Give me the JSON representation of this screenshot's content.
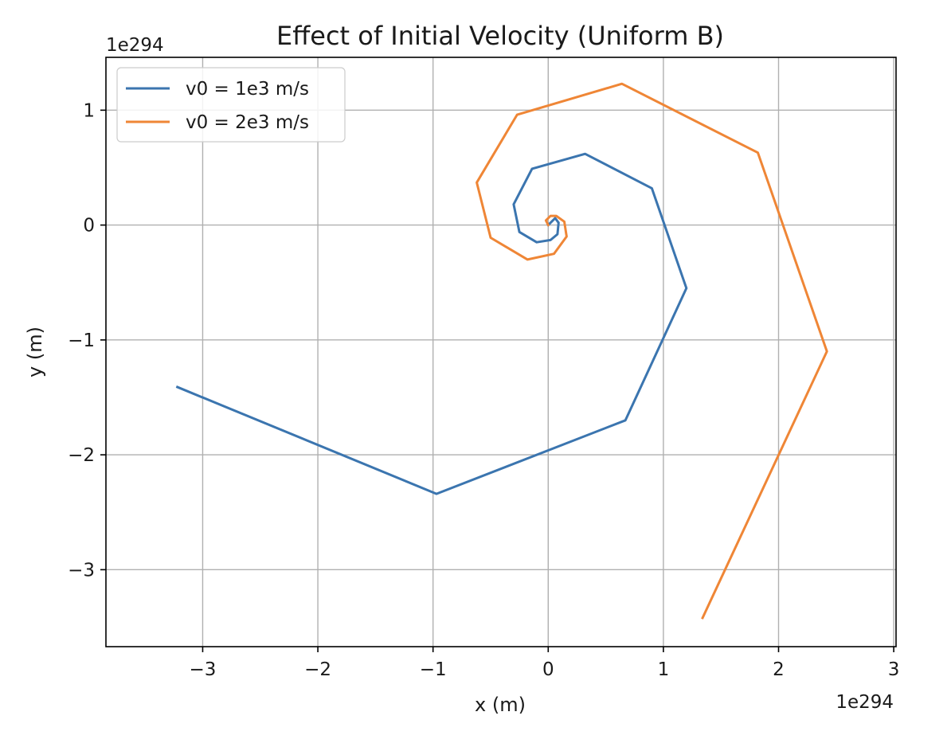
{
  "chart_data": {
    "type": "line",
    "title": "Effect of Initial Velocity (Uniform B)",
    "xlabel": "x (m)",
    "ylabel": "y (m)",
    "x_offset_text": "1e294",
    "y_offset_text": "1e294",
    "xlim": [
      -3.84,
      3.02
    ],
    "ylim": [
      -3.67,
      1.46
    ],
    "x_ticks": [
      -3,
      -2,
      -1,
      0,
      1,
      2,
      3
    ],
    "y_ticks": [
      -3,
      -2,
      -1,
      0,
      1
    ],
    "x_tick_labels": [
      "−3",
      "−2",
      "−1",
      "0",
      "1",
      "2",
      "3"
    ],
    "y_tick_labels": [
      "−3",
      "−2",
      "−1",
      "0",
      "1"
    ],
    "grid": true,
    "legend_position": "top-left",
    "series": [
      {
        "name": "v0 = 1e3 m/s",
        "color": "#3b75af",
        "points": [
          [
            0.0,
            0.0
          ],
          [
            0.03,
            0.03
          ],
          [
            0.06,
            0.06
          ],
          [
            0.09,
            0.02
          ],
          [
            0.08,
            -0.08
          ],
          [
            0.02,
            -0.13
          ],
          [
            -0.1,
            -0.15
          ],
          [
            -0.25,
            -0.06
          ],
          [
            -0.3,
            0.18
          ],
          [
            -0.14,
            0.49
          ],
          [
            0.32,
            0.62
          ],
          [
            0.9,
            0.32
          ],
          [
            1.2,
            -0.55
          ],
          [
            0.67,
            -1.7
          ],
          [
            -0.97,
            -2.34
          ],
          [
            -3.22,
            -1.41
          ]
        ]
      },
      {
        "name": "v0 = 2e3 m/s",
        "color": "#ef8636",
        "points": [
          [
            0.0,
            0.0
          ],
          [
            -0.02,
            0.04
          ],
          [
            0.02,
            0.08
          ],
          [
            0.07,
            0.08
          ],
          [
            0.14,
            0.03
          ],
          [
            0.16,
            -0.1
          ],
          [
            0.05,
            -0.25
          ],
          [
            -0.18,
            -0.3
          ],
          [
            -0.5,
            -0.11
          ],
          [
            -0.62,
            0.37
          ],
          [
            -0.27,
            0.96
          ],
          [
            0.64,
            1.23
          ],
          [
            1.82,
            0.63
          ],
          [
            2.42,
            -1.1
          ],
          [
            1.34,
            -3.42
          ]
        ]
      }
    ]
  }
}
